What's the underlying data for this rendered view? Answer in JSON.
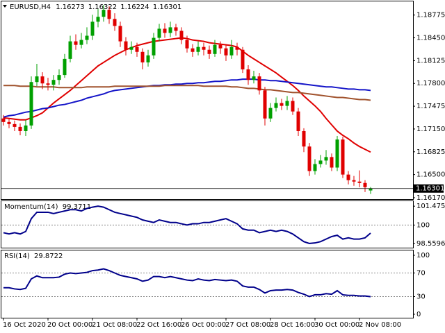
{
  "chart_data": [
    {
      "type": "candlestick",
      "title": "EURUSD,H4",
      "up_color": "#00a000",
      "down_color": "#e00000",
      "open": [
        1.173,
        1.1725,
        1.1722,
        1.1718,
        1.1712,
        1.172,
        1.1782,
        1.179,
        1.178,
        1.1778,
        1.1785,
        1.1792,
        1.1815,
        1.184,
        1.1835,
        1.1842,
        1.1848,
        1.1868,
        1.1875,
        1.1885,
        1.1872,
        1.1862,
        1.184,
        1.1828,
        1.1832,
        1.1825,
        1.181,
        1.182,
        1.1845,
        1.1858,
        1.1852,
        1.186,
        1.1855,
        1.1842,
        1.183,
        1.1825,
        1.1832,
        1.1828,
        1.1822,
        1.1835,
        1.183,
        1.182,
        1.1832,
        1.1828,
        1.18,
        1.1785,
        1.179,
        1.177,
        1.173,
        1.1745,
        1.1752,
        1.1748,
        1.1755,
        1.174,
        1.1712,
        1.169,
        1.1655,
        1.1665,
        1.167,
        1.1675,
        1.166,
        1.17,
        1.165,
        1.1642,
        1.164,
        1.1638,
        1.16273
      ],
      "high": [
        1.1735,
        1.173,
        1.1727,
        1.1723,
        1.1728,
        1.179,
        1.1808,
        1.1796,
        1.1788,
        1.1792,
        1.18,
        1.1822,
        1.1848,
        1.185,
        1.1852,
        1.186,
        1.1878,
        1.1886,
        1.1892,
        1.189,
        1.188,
        1.1868,
        1.1846,
        1.184,
        1.1838,
        1.183,
        1.1828,
        1.1852,
        1.1865,
        1.1866,
        1.1868,
        1.1865,
        1.186,
        1.1848,
        1.1836,
        1.184,
        1.1838,
        1.1834,
        1.1842,
        1.184,
        1.1836,
        1.1842,
        1.1838,
        1.1832,
        1.1806,
        1.1798,
        1.1795,
        1.1775,
        1.1752,
        1.176,
        1.1758,
        1.1762,
        1.176,
        1.1745,
        1.1716,
        1.1695,
        1.1672,
        1.1678,
        1.1685,
        1.168,
        1.1705,
        1.1704,
        1.1655,
        1.1648,
        1.1656,
        1.1642,
        1.16322
      ],
      "low": [
        1.172,
        1.1716,
        1.1712,
        1.1706,
        1.1705,
        1.1715,
        1.1776,
        1.1772,
        1.177,
        1.177,
        1.1778,
        1.1788,
        1.181,
        1.1828,
        1.183,
        1.1836,
        1.1842,
        1.186,
        1.1868,
        1.1865,
        1.1855,
        1.1832,
        1.182,
        1.1822,
        1.1818,
        1.18,
        1.1804,
        1.1815,
        1.184,
        1.1845,
        1.1846,
        1.1848,
        1.1836,
        1.1824,
        1.1818,
        1.182,
        1.182,
        1.1815,
        1.1818,
        1.1822,
        1.1812,
        1.1815,
        1.182,
        1.1795,
        1.1778,
        1.178,
        1.1764,
        1.172,
        1.1725,
        1.174,
        1.1742,
        1.1742,
        1.1735,
        1.1705,
        1.1682,
        1.1648,
        1.165,
        1.166,
        1.1664,
        1.1655,
        1.1655,
        1.1645,
        1.1636,
        1.1634,
        1.1632,
        1.1625,
        1.16224
      ],
      "close": [
        1.1725,
        1.1722,
        1.1718,
        1.1712,
        1.172,
        1.1782,
        1.179,
        1.178,
        1.1778,
        1.1785,
        1.1792,
        1.1815,
        1.184,
        1.1835,
        1.1842,
        1.1848,
        1.1868,
        1.1875,
        1.1885,
        1.1872,
        1.1862,
        1.184,
        1.1828,
        1.1832,
        1.1825,
        1.181,
        1.182,
        1.1845,
        1.1858,
        1.1852,
        1.186,
        1.1855,
        1.1842,
        1.183,
        1.1825,
        1.1832,
        1.1828,
        1.1822,
        1.1835,
        1.183,
        1.182,
        1.1832,
        1.1828,
        1.18,
        1.1785,
        1.179,
        1.177,
        1.173,
        1.1745,
        1.1752,
        1.1748,
        1.1755,
        1.174,
        1.1712,
        1.169,
        1.1655,
        1.1665,
        1.167,
        1.1675,
        1.166,
        1.17,
        1.165,
        1.1642,
        1.164,
        1.1638,
        1.1632,
        1.16301
      ],
      "overlays": [
        {
          "color": "#e00000",
          "values": [
            1.1731,
            1.173,
            1.1729,
            1.1728,
            1.1728,
            1.1731,
            1.1734,
            1.1738,
            1.1745,
            1.1752,
            1.1758,
            1.1764,
            1.177,
            1.1777,
            1.1784,
            1.1791,
            1.1798,
            1.1805,
            1.181,
            1.1815,
            1.182,
            1.1824,
            1.1828,
            1.1831,
            1.1834,
            1.1836,
            1.1838,
            1.184,
            1.1841,
            1.1842,
            1.1843,
            1.1844,
            1.1845,
            1.1844,
            1.1842,
            1.1841,
            1.184,
            1.1838,
            1.1837,
            1.1836,
            1.1835,
            1.1834,
            1.1832,
            1.1826,
            1.182,
            1.1815,
            1.181,
            1.1805,
            1.18,
            1.1795,
            1.1789,
            1.1783,
            1.1777,
            1.177,
            1.1762,
            1.1755,
            1.1748,
            1.174,
            1.173,
            1.1721,
            1.1712,
            1.1706,
            1.1701,
            1.1695,
            1.169,
            1.1686,
            1.1682
          ]
        },
        {
          "color": "#1414c8",
          "values": [
            1.1732,
            1.1734,
            1.1735,
            1.1737,
            1.1739,
            1.174,
            1.1742,
            1.1744,
            1.1745,
            1.1747,
            1.1749,
            1.175,
            1.1752,
            1.1754,
            1.1756,
            1.1759,
            1.1761,
            1.1763,
            1.1765,
            1.1768,
            1.177,
            1.1771,
            1.1772,
            1.1773,
            1.1774,
            1.1775,
            1.1776,
            1.1777,
            1.1777,
            1.1778,
            1.1778,
            1.1779,
            1.1779,
            1.178,
            1.178,
            1.1781,
            1.1781,
            1.1782,
            1.1783,
            1.1783,
            1.1784,
            1.1785,
            1.1785,
            1.1786,
            1.1786,
            1.1786,
            1.1785,
            1.1785,
            1.1784,
            1.1784,
            1.1783,
            1.1782,
            1.1781,
            1.178,
            1.1779,
            1.1778,
            1.1777,
            1.1776,
            1.1775,
            1.1775,
            1.1774,
            1.1773,
            1.1772,
            1.1772,
            1.1771,
            1.1771,
            1.177
          ]
        },
        {
          "color": "#a0522d",
          "values": [
            1.1777,
            1.1777,
            1.1777,
            1.1776,
            1.1776,
            1.1776,
            1.1775,
            1.1775,
            1.1775,
            1.1775,
            1.1774,
            1.1774,
            1.1774,
            1.1774,
            1.1774,
            1.1775,
            1.1775,
            1.1775,
            1.1775,
            1.1775,
            1.1776,
            1.1776,
            1.1776,
            1.1776,
            1.1776,
            1.1776,
            1.1776,
            1.1776,
            1.1776,
            1.1777,
            1.1777,
            1.1777,
            1.1777,
            1.1777,
            1.1777,
            1.1777,
            1.1776,
            1.1776,
            1.1776,
            1.1776,
            1.1776,
            1.1775,
            1.1775,
            1.1774,
            1.1773,
            1.1773,
            1.1772,
            1.1771,
            1.1771,
            1.177,
            1.1769,
            1.1768,
            1.1767,
            1.1767,
            1.1766,
            1.1765,
            1.1764,
            1.1763,
            1.1762,
            1.1761,
            1.176,
            1.176,
            1.1759,
            1.1758,
            1.1757,
            1.1757,
            1.1756
          ]
        }
      ],
      "ylim": [
        1.1615,
        1.1897
      ],
      "yticks": [
        1.18775,
        {
          "value": 1.1845,
          "label": "1.18450"
        },
        1.18125,
        {
          "value": 1.178,
          "label": "1.17800"
        },
        1.17475,
        {
          "value": 1.1715,
          "label": "1.17150"
        },
        1.16825,
        {
          "value": 1.165,
          "label": "1.16500"
        },
        {
          "value": 1.1617,
          "label": "1.16170"
        }
      ],
      "xticks": [
        {
          "value": 0,
          "label": "16 Oct 2020"
        },
        {
          "value": 8,
          "label": "20 Oct 00:00"
        },
        {
          "value": 16,
          "label": "21 Oct 08:00"
        },
        {
          "value": 24,
          "label": "22 Oct 16:00"
        },
        {
          "value": 32,
          "label": "26 Oct 00:00"
        },
        {
          "value": 40,
          "label": "27 Oct 08:00"
        },
        {
          "value": 48,
          "label": "28 Oct 16:00"
        },
        {
          "value": 56,
          "label": "30 Oct 00:00"
        },
        {
          "value": 64,
          "label": "2 Nov 08:00"
        }
      ]
    },
    {
      "type": "line",
      "title": "Momentum(14)",
      "color": "#00008b",
      "values": [
        99.4,
        99.3,
        99.4,
        99.3,
        99.5,
        100.5,
        101.0,
        101.0,
        101.0,
        100.9,
        101.0,
        101.1,
        101.2,
        101.2,
        101.1,
        101.3,
        101.4,
        101.4755,
        101.4,
        101.2,
        101.0,
        100.9,
        100.8,
        100.7,
        100.6,
        100.4,
        100.3,
        100.2,
        100.4,
        100.3,
        100.2,
        100.2,
        100.1,
        100.0,
        100.1,
        100.1,
        100.2,
        100.2,
        100.3,
        100.4,
        100.5,
        100.3,
        100.1,
        99.7,
        99.6,
        99.6,
        99.4,
        99.5,
        99.6,
        99.5,
        99.6,
        99.5,
        99.3,
        99.0,
        98.7,
        98.5596,
        98.6,
        98.7,
        98.9,
        99.1,
        99.2,
        98.9,
        99.0,
        98.9,
        98.9,
        99.0,
        99.3711
      ],
      "ylim": [
        98.23,
        101.92
      ],
      "yticks": [
        101.4755,
        100,
        98.5596
      ],
      "levels": [
        100
      ]
    },
    {
      "type": "line",
      "title": "RSI(14)",
      "color": "#00008b",
      "values": [
        45,
        45,
        43,
        42,
        44,
        60,
        65,
        62,
        62,
        62,
        63,
        68,
        70,
        69,
        70,
        71,
        74,
        75,
        77,
        74,
        70,
        66,
        64,
        62,
        60,
        56,
        58,
        64,
        64,
        62,
        64,
        62,
        60,
        58,
        57,
        60,
        58,
        57,
        59,
        58,
        57,
        58,
        56,
        48,
        46,
        46,
        42,
        36,
        40,
        41,
        41,
        42,
        41,
        37,
        34,
        30,
        33,
        33,
        35,
        34,
        40,
        33,
        32,
        32,
        31,
        31,
        29.8722
      ],
      "ylim": [
        -5.9,
        109.4
      ],
      "yticks": [
        100,
        70,
        30,
        0
      ],
      "levels": [
        70,
        30
      ]
    }
  ]
}
